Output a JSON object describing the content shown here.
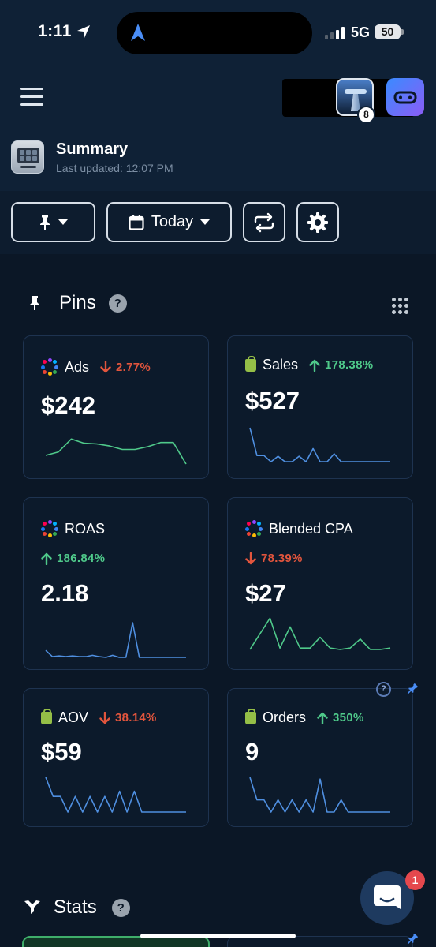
{
  "status_bar": {
    "time": "1:11",
    "network": "5G",
    "battery": "50"
  },
  "header": {
    "title": "Summary",
    "last_updated": "Last updated: 12:07 PM",
    "notification_count": "8"
  },
  "toolbar": {
    "date_label": "Today"
  },
  "pins_section": {
    "title": "Pins",
    "help": "?"
  },
  "stats_section": {
    "title": "Stats",
    "help": "?"
  },
  "colors": {
    "up": "#4fc98a",
    "down": "#e2553d",
    "spark_green": "#4fc98a",
    "spark_blue": "#4f8fe0"
  },
  "cards": [
    {
      "label": "Ads",
      "icon": "ad-platforms-ring-icon",
      "direction": "down",
      "change": "2.77%",
      "value": "$242",
      "spark_color": "green",
      "spark": [
        0.25,
        0.35,
        0.72,
        0.6,
        0.58,
        0.52,
        0.42,
        0.42,
        0.5,
        0.62,
        0.62,
        0.0
      ]
    },
    {
      "label": "Sales",
      "icon": "shopify-icon",
      "direction": "up",
      "change": "178.38%",
      "value": "$527",
      "spark_color": "blue",
      "spark": [
        1.0,
        0.2,
        0.2,
        0.02,
        0.18,
        0.02,
        0.02,
        0.18,
        0.02,
        0.4,
        0.02,
        0.02,
        0.25,
        0.02,
        0.02,
        0.02,
        0.02,
        0.02,
        0.02,
        0.02,
        0.02
      ]
    },
    {
      "label": "ROAS",
      "icon": "ad-platforms-ring-icon",
      "direction": "up",
      "change": "186.84%",
      "value": "2.18",
      "spark_color": "blue",
      "spark": [
        0.2,
        0.02,
        0.04,
        0.02,
        0.04,
        0.02,
        0.02,
        0.06,
        0.02,
        0.0,
        0.06,
        0.0,
        0.0,
        1.0,
        0.0,
        0.0,
        0.0,
        0.0,
        0.0,
        0.0,
        0.0,
        0.0
      ]
    },
    {
      "label": "Blended CPA",
      "icon": "ad-platforms-ring-icon",
      "direction": "down",
      "change": "78.39%",
      "value": "$27",
      "spark_color": "green",
      "spark": [
        0.0,
        0.45,
        0.9,
        0.04,
        0.65,
        0.04,
        0.04,
        0.35,
        0.04,
        0.0,
        0.04,
        0.3,
        0.0,
        0.0,
        0.04
      ]
    },
    {
      "label": "AOV",
      "icon": "shopify-icon",
      "direction": "down",
      "change": "38.14%",
      "value": "$59",
      "spark_color": "blue",
      "spark": [
        1.0,
        0.45,
        0.45,
        0.0,
        0.45,
        0.0,
        0.45,
        0.0,
        0.45,
        0.0,
        0.6,
        0.0,
        0.6,
        0.0,
        0.0,
        0.0,
        0.0,
        0.0,
        0.0,
        0.0
      ]
    },
    {
      "label": "Orders",
      "icon": "shopify-icon",
      "direction": "up",
      "change": "350%",
      "value": "9",
      "spark_color": "blue",
      "spark": [
        1.0,
        0.35,
        0.35,
        0.0,
        0.35,
        0.0,
        0.35,
        0.0,
        0.35,
        0.0,
        0.95,
        0.0,
        0.0,
        0.35,
        0.0,
        0.0,
        0.0,
        0.0,
        0.0,
        0.0,
        0.0
      ]
    }
  ],
  "chat": {
    "unread": "1"
  }
}
